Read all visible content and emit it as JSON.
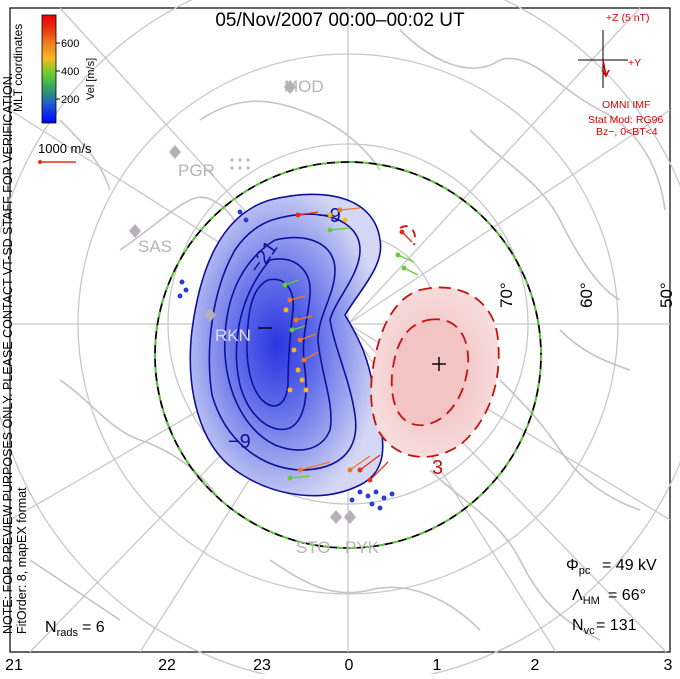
{
  "title": "05/Nov/2007 00:00–00:02 UT",
  "side_note": {
    "line1": "NOTE: FOR PREVIEW PURPOSES ONLY. PLEASE CONTACT VT-SD STAFF FOR VERIFICATION.",
    "line2": "FitOrder: 8, mapEX format"
  },
  "mlt_label": "MLT coordinates",
  "velocity_colorbar": {
    "label": "Vel [m/s]",
    "ticks": [
      "600",
      "400",
      "200"
    ],
    "colors": [
      "#0000ff",
      "#1f5fd0",
      "#2e9a6a",
      "#66cc33",
      "#f6b81c",
      "#f07820",
      "#e83010",
      "#ee0000"
    ]
  },
  "vector_scale_label": "1000 m/s",
  "imf": {
    "z_label": "+Z (5 nT)",
    "y_label": "+Y",
    "source": "OMNI IMF",
    "model_line1": "Stat Mod: RG96",
    "model_line2": "Bz−, 0<BT<4"
  },
  "stations": [
    "MOD",
    "PGR",
    "SAS",
    "RKN",
    "STO",
    "PYK"
  ],
  "latitude_labels": [
    "70°",
    "60°",
    "50°"
  ],
  "contour_labels": {
    "negative": [
      "−9",
      "−21",
      "−9"
    ],
    "positive": [
      "3"
    ]
  },
  "stats": {
    "phi_pc_label": "Φpc",
    "phi_pc_value": "= 49 kV",
    "lambda_hm_label": "ΛHM",
    "lambda_hm_value": "= 66°",
    "n_vc_label": "Nvc",
    "n_vc_value": "= 131",
    "n_rads_label": "Nrads",
    "n_rads_value": "= 6"
  },
  "mlt_ticks": [
    "21",
    "22",
    "23",
    "0",
    "1",
    "2",
    "3"
  ],
  "colors": {
    "negative_fill": "#d8dcf3",
    "negative_core": "#4a5ae0",
    "negative_line": "#10109a",
    "positive_fill": "#f6d6d6",
    "positive_line": "#c81010",
    "map_lines": "#c8c8c8",
    "imf_color": "#d80000"
  }
}
